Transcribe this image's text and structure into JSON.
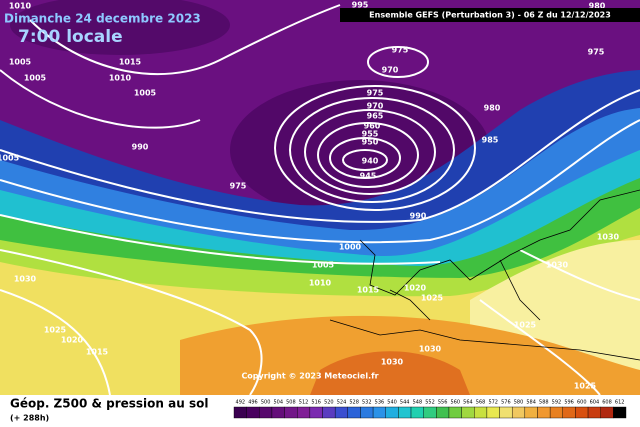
{
  "header": {
    "date": "Dimanche 24 decembre 2023",
    "time": "7:00 locale",
    "model": "Ensemble GEFS  (Perturbation 3)  -  06 Z du 12/12/2023"
  },
  "copyright": "Copyright © 2023 Meteociel.fr",
  "footer": {
    "title": "Géop. Z500 & pression au sol",
    "lead": "(+ 288h)"
  },
  "legend": {
    "labels": [
      492,
      496,
      500,
      504,
      508,
      512,
      516,
      520,
      524,
      528,
      532,
      536,
      540,
      544,
      548,
      552,
      556,
      560,
      564,
      568,
      572,
      576,
      580,
      584,
      588,
      592,
      596,
      600,
      604,
      608,
      612
    ],
    "colors": [
      "#3a0050",
      "#48005e",
      "#56086c",
      "#640e7a",
      "#721688",
      "#801e96",
      "#7a2ab0",
      "#5a3cc0",
      "#3a4ed0",
      "#2a62d8",
      "#2a7ae0",
      "#2a92e8",
      "#20aee0",
      "#20c4d0",
      "#20d0b0",
      "#30cc80",
      "#40c050",
      "#70cc40",
      "#a0d840",
      "#c8e040",
      "#e8e850",
      "#f0e070",
      "#f0c860",
      "#f0b040",
      "#f09830",
      "#e88020",
      "#e06818",
      "#d85010",
      "#c83c10",
      "#b02810",
      "#000000"
    ]
  },
  "isobars": [
    1010,
    1005,
    1005,
    1015,
    1010,
    1005,
    990,
    1005,
    995,
    975,
    970,
    975,
    970,
    965,
    960,
    955,
    950,
    940,
    945,
    975,
    980,
    985,
    975,
    980,
    990,
    1000,
    1005,
    1010,
    1015,
    1020,
    1025,
    1030,
    1030,
    1030,
    1025,
    1020,
    1015,
    1025,
    1030,
    1030,
    1025
  ]
}
